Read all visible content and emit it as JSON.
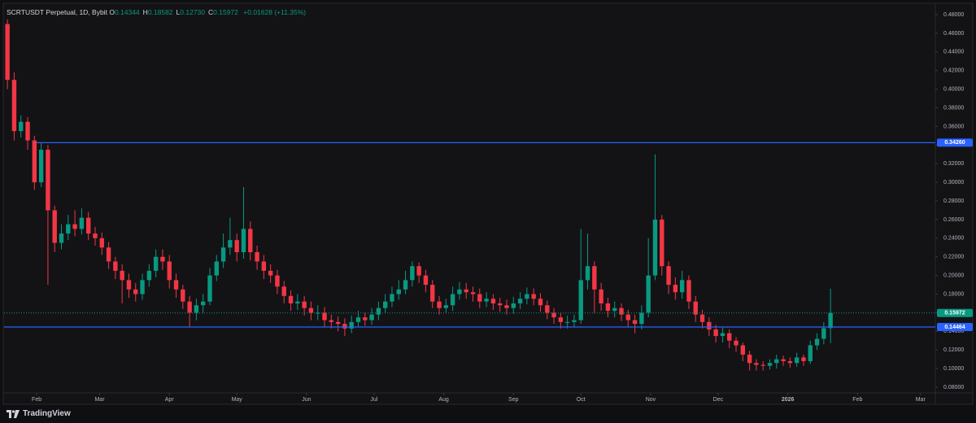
{
  "header": {
    "symbol": "SCRTUSDT Perpetual, 1D, Bybit",
    "ohlc": [
      {
        "key": "O",
        "value": "0.14344"
      },
      {
        "key": "H",
        "value": "0.18582"
      },
      {
        "key": "L",
        "value": "0.12730"
      },
      {
        "key": "C",
        "value": "0.15972"
      }
    ],
    "change": "+0.01628 (+11.35%)"
  },
  "footer": {
    "brand": "TradingView"
  },
  "chart_data": {
    "type": "candlestick",
    "up_color": "#089981",
    "down_color": "#f23645",
    "grid": false,
    "xlim": [
      16.5,
      430.6
    ],
    "xticks": [
      {
        "value": 31,
        "label": "Feb"
      },
      {
        "value": 59,
        "label": "Mar"
      },
      {
        "value": 90,
        "label": "Apr"
      },
      {
        "value": 120,
        "label": "May"
      },
      {
        "value": 151,
        "label": "Jun"
      },
      {
        "value": 181,
        "label": "Jul"
      },
      {
        "value": 212,
        "label": "Aug"
      },
      {
        "value": 243,
        "label": "Sep"
      },
      {
        "value": 273,
        "label": "Oct"
      },
      {
        "value": 304,
        "label": "Nov"
      },
      {
        "value": 334,
        "label": "Dec"
      },
      {
        "value": 365,
        "label": "2026"
      },
      {
        "value": 396,
        "label": "Feb"
      },
      {
        "value": 424,
        "label": "Mar"
      }
    ],
    "ylim": [
      0.0739,
      0.4914
    ],
    "yticks": [
      {
        "value": 0.08,
        "label": "0.08000"
      },
      {
        "value": 0.1,
        "label": "0.10000"
      },
      {
        "value": 0.12,
        "label": "0.12000"
      },
      {
        "value": 0.14,
        "label": "0.14000"
      },
      {
        "value": 0.16,
        "label": "0.16000"
      },
      {
        "value": 0.18,
        "label": "0.18000"
      },
      {
        "value": 0.2,
        "label": "0.20000"
      },
      {
        "value": 0.22,
        "label": "0.22000"
      },
      {
        "value": 0.24,
        "label": "0.24000"
      },
      {
        "value": 0.26,
        "label": "0.26000"
      },
      {
        "value": 0.28,
        "label": "0.28000"
      },
      {
        "value": 0.3,
        "label": "0.30000"
      },
      {
        "value": 0.32,
        "label": "0.32000"
      },
      {
        "value": 0.34,
        "label": "0.34000"
      },
      {
        "value": 0.36,
        "label": "0.36000"
      },
      {
        "value": 0.38,
        "label": "0.38000"
      },
      {
        "value": 0.4,
        "label": "0.40000"
      },
      {
        "value": 0.42,
        "label": "0.42000"
      },
      {
        "value": 0.44,
        "label": "0.44000"
      },
      {
        "value": 0.46,
        "label": "0.46000"
      },
      {
        "value": 0.48,
        "label": "0.48000"
      }
    ],
    "hlines": [
      {
        "value": 0.3426,
        "label": "0.34260",
        "color": "#2962ff",
        "x_start": 31
      },
      {
        "value": 0.14464,
        "label": "0.14464",
        "color": "#2962ff",
        "x_start": 16.5
      }
    ],
    "last_price": {
      "value": 0.15972,
      "label": "0.15972",
      "color": "#089981"
    },
    "x": [
      18,
      21,
      24,
      27,
      30,
      33,
      36,
      39,
      42,
      45,
      48,
      51,
      54,
      57,
      60,
      63,
      66,
      69,
      72,
      75,
      78,
      81,
      84,
      87,
      90,
      93,
      96,
      99,
      102,
      105,
      108,
      111,
      114,
      117,
      120,
      123,
      126,
      129,
      132,
      135,
      138,
      141,
      144,
      147,
      150,
      153,
      156,
      159,
      162,
      165,
      168,
      171,
      174,
      177,
      180,
      183,
      186,
      189,
      192,
      195,
      198,
      201,
      204,
      207,
      210,
      213,
      216,
      219,
      222,
      225,
      228,
      231,
      234,
      237,
      240,
      243,
      246,
      249,
      252,
      255,
      258,
      261,
      264,
      267,
      270,
      273,
      276,
      279,
      282,
      285,
      288,
      291,
      294,
      297,
      300,
      303,
      306,
      309,
      312,
      315,
      318,
      321,
      324,
      327,
      330,
      333,
      336,
      339,
      342,
      345,
      348,
      351,
      354,
      357,
      360,
      363,
      366,
      369,
      372,
      375,
      378,
      381,
      384
    ],
    "open": [
      0.47,
      0.41,
      0.355,
      0.365,
      0.345,
      0.3,
      0.335,
      0.27,
      0.235,
      0.245,
      0.255,
      0.25,
      0.262,
      0.245,
      0.24,
      0.23,
      0.215,
      0.205,
      0.195,
      0.185,
      0.18,
      0.195,
      0.205,
      0.22,
      0.215,
      0.195,
      0.185,
      0.172,
      0.16,
      0.168,
      0.172,
      0.2,
      0.215,
      0.23,
      0.238,
      0.225,
      0.25,
      0.225,
      0.215,
      0.205,
      0.2,
      0.188,
      0.178,
      0.17,
      0.172,
      0.165,
      0.16,
      0.16,
      0.152,
      0.15,
      0.148,
      0.143,
      0.15,
      0.155,
      0.152,
      0.158,
      0.165,
      0.172,
      0.18,
      0.185,
      0.195,
      0.21,
      0.2,
      0.19,
      0.172,
      0.165,
      0.168,
      0.18,
      0.185,
      0.182,
      0.18,
      0.172,
      0.175,
      0.17,
      0.168,
      0.165,
      0.17,
      0.175,
      0.18,
      0.175,
      0.168,
      0.16,
      0.155,
      0.15,
      0.15,
      0.152,
      0.195,
      0.21,
      0.185,
      0.17,
      0.162,
      0.165,
      0.158,
      0.152,
      0.148,
      0.16,
      0.2,
      0.26,
      0.21,
      0.19,
      0.182,
      0.195,
      0.172,
      0.158,
      0.15,
      0.142,
      0.135,
      0.138,
      0.13,
      0.125,
      0.115,
      0.106,
      0.104,
      0.103,
      0.106,
      0.11,
      0.108,
      0.106,
      0.112,
      0.108,
      0.125,
      0.132,
      0.14344
    ],
    "high": [
      0.475,
      0.418,
      0.372,
      0.37,
      0.35,
      0.343,
      0.34,
      0.275,
      0.255,
      0.265,
      0.27,
      0.272,
      0.268,
      0.252,
      0.246,
      0.236,
      0.22,
      0.212,
      0.202,
      0.192,
      0.202,
      0.212,
      0.228,
      0.228,
      0.222,
      0.202,
      0.19,
      0.178,
      0.175,
      0.18,
      0.208,
      0.222,
      0.245,
      0.262,
      0.245,
      0.295,
      0.258,
      0.232,
      0.222,
      0.212,
      0.206,
      0.194,
      0.184,
      0.18,
      0.178,
      0.172,
      0.168,
      0.166,
      0.158,
      0.156,
      0.154,
      0.157,
      0.162,
      0.16,
      0.165,
      0.172,
      0.18,
      0.188,
      0.195,
      0.205,
      0.215,
      0.214,
      0.206,
      0.195,
      0.178,
      0.175,
      0.188,
      0.193,
      0.192,
      0.188,
      0.186,
      0.182,
      0.18,
      0.176,
      0.174,
      0.177,
      0.182,
      0.187,
      0.186,
      0.181,
      0.173,
      0.165,
      0.16,
      0.157,
      0.158,
      0.25,
      0.245,
      0.215,
      0.192,
      0.176,
      0.172,
      0.17,
      0.163,
      0.158,
      0.168,
      0.24,
      0.33,
      0.265,
      0.215,
      0.198,
      0.205,
      0.2,
      0.178,
      0.163,
      0.155,
      0.147,
      0.144,
      0.142,
      0.134,
      0.128,
      0.119,
      0.11,
      0.108,
      0.11,
      0.115,
      0.114,
      0.112,
      0.117,
      0.115,
      0.13,
      0.138,
      0.15,
      0.18582
    ],
    "low": [
      0.4,
      0.345,
      0.348,
      0.335,
      0.292,
      0.295,
      0.19,
      0.225,
      0.228,
      0.238,
      0.242,
      0.244,
      0.238,
      0.232,
      0.222,
      0.207,
      0.196,
      0.17,
      0.176,
      0.172,
      0.174,
      0.188,
      0.198,
      0.206,
      0.186,
      0.176,
      0.164,
      0.145,
      0.152,
      0.16,
      0.168,
      0.194,
      0.208,
      0.222,
      0.215,
      0.218,
      0.216,
      0.206,
      0.196,
      0.192,
      0.18,
      0.17,
      0.162,
      0.163,
      0.157,
      0.152,
      0.152,
      0.145,
      0.143,
      0.14,
      0.135,
      0.138,
      0.145,
      0.146,
      0.147,
      0.152,
      0.16,
      0.166,
      0.174,
      0.18,
      0.188,
      0.192,
      0.182,
      0.165,
      0.158,
      0.16,
      0.162,
      0.174,
      0.175,
      0.172,
      0.165,
      0.166,
      0.163,
      0.161,
      0.158,
      0.159,
      0.164,
      0.169,
      0.168,
      0.161,
      0.153,
      0.148,
      0.143,
      0.143,
      0.145,
      0.148,
      0.185,
      0.16,
      0.162,
      0.155,
      0.155,
      0.151,
      0.145,
      0.138,
      0.142,
      0.155,
      0.195,
      0.2,
      0.18,
      0.174,
      0.175,
      0.164,
      0.15,
      0.143,
      0.135,
      0.128,
      0.128,
      0.122,
      0.118,
      0.108,
      0.098,
      0.098,
      0.098,
      0.099,
      0.1,
      0.103,
      0.101,
      0.102,
      0.103,
      0.105,
      0.12,
      0.126,
      0.1273
    ],
    "close": [
      0.41,
      0.355,
      0.365,
      0.345,
      0.3,
      0.335,
      0.27,
      0.235,
      0.245,
      0.255,
      0.25,
      0.262,
      0.245,
      0.24,
      0.23,
      0.215,
      0.205,
      0.195,
      0.185,
      0.18,
      0.195,
      0.205,
      0.22,
      0.215,
      0.195,
      0.185,
      0.172,
      0.16,
      0.168,
      0.172,
      0.2,
      0.215,
      0.23,
      0.238,
      0.225,
      0.25,
      0.225,
      0.215,
      0.205,
      0.2,
      0.188,
      0.178,
      0.17,
      0.172,
      0.165,
      0.16,
      0.16,
      0.152,
      0.15,
      0.148,
      0.143,
      0.15,
      0.155,
      0.152,
      0.158,
      0.165,
      0.172,
      0.18,
      0.185,
      0.195,
      0.21,
      0.2,
      0.19,
      0.172,
      0.165,
      0.168,
      0.18,
      0.185,
      0.182,
      0.18,
      0.172,
      0.175,
      0.17,
      0.168,
      0.165,
      0.17,
      0.175,
      0.18,
      0.175,
      0.168,
      0.16,
      0.155,
      0.15,
      0.15,
      0.152,
      0.195,
      0.21,
      0.185,
      0.17,
      0.162,
      0.165,
      0.158,
      0.152,
      0.148,
      0.16,
      0.2,
      0.26,
      0.21,
      0.19,
      0.182,
      0.195,
      0.172,
      0.158,
      0.15,
      0.142,
      0.135,
      0.138,
      0.13,
      0.125,
      0.115,
      0.106,
      0.104,
      0.103,
      0.106,
      0.11,
      0.108,
      0.106,
      0.112,
      0.108,
      0.125,
      0.132,
      0.14344,
      0.15972
    ]
  }
}
